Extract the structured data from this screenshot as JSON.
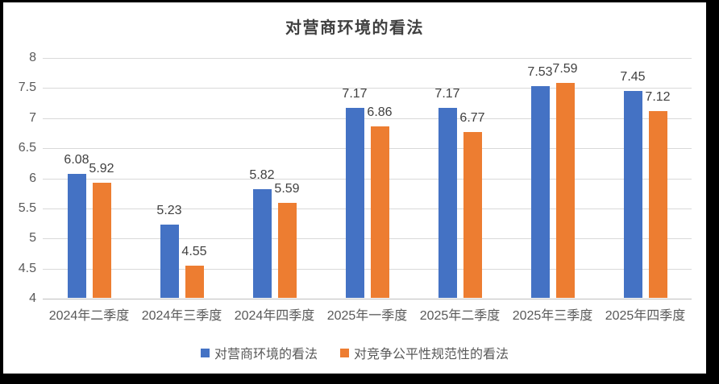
{
  "window": {
    "background": "#000000",
    "panel_background": "#ffffff"
  },
  "chart_data": {
    "type": "bar",
    "title": "对营商环境的看法",
    "categories": [
      "2024年二季度",
      "2024年三季度",
      "2024年四季度",
      "2025年一季度",
      "2025年二季度",
      "2025年三季度",
      "2025年四季度"
    ],
    "series": [
      {
        "name": "对营商环境的看法",
        "color": "#4472C4",
        "values": [
          6.08,
          5.23,
          5.82,
          7.17,
          7.17,
          7.53,
          7.45
        ],
        "labels": [
          "6.08",
          "5.23",
          "5.82",
          "7.17",
          "7.17",
          "7.53",
          "7.45"
        ]
      },
      {
        "name": "对竞争公平性规范性的看法",
        "color": "#ED7D31",
        "values": [
          5.92,
          4.55,
          5.59,
          6.86,
          6.77,
          7.59,
          7.12
        ],
        "labels": [
          "5.92",
          "4.55",
          "5.59",
          "6.86",
          "6.77",
          "7.59",
          "7.12"
        ]
      }
    ],
    "xlabel": "",
    "ylabel": "",
    "ylim": [
      4,
      8
    ],
    "ytick_step": 0.5,
    "yticks": [
      "8",
      "7.5",
      "7",
      "6.5",
      "6",
      "5.5",
      "5",
      "4.5",
      "4"
    ],
    "grid": true,
    "data_labels": true,
    "legend_position": "bottom",
    "gridline_color": "#d9d9d9",
    "baseline_color": "#bfbfbf",
    "label_color": "#404040",
    "axis_text_color": "#595959"
  }
}
